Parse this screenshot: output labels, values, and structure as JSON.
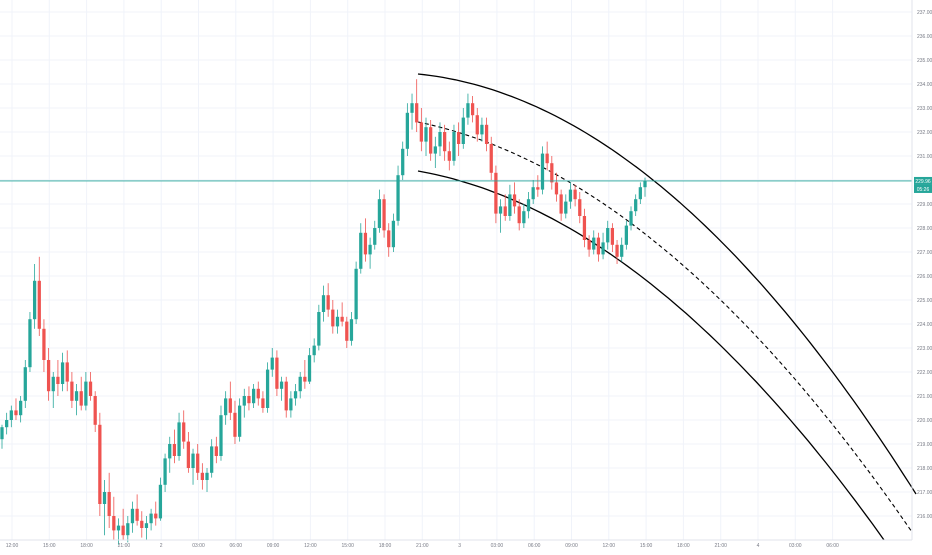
{
  "chart_data": {
    "type": "candlestick",
    "title": "",
    "xlabel": "",
    "ylabel": "",
    "ylim": [
      215,
      237.5
    ],
    "grid": true,
    "colors": {
      "up": "#26a69a",
      "down": "#ef5350",
      "last_price_line": "#26a69a",
      "channel": "#000000",
      "grid": "#f0f3fa",
      "axis_text": "#787b86"
    },
    "y_ticks": [
      "216.00",
      "217.00",
      "218.00",
      "219.00",
      "220.00",
      "221.00",
      "222.00",
      "223.00",
      "224.00",
      "225.00",
      "226.00",
      "227.00",
      "228.00",
      "229.00",
      "230.00",
      "231.00",
      "232.00",
      "233.00",
      "234.00",
      "235.00",
      "236.00",
      "237.00"
    ],
    "x_ticks": [
      "12:00",
      "15:00",
      "18:00",
      "21:00",
      "2",
      "03:00",
      "06:00",
      "09:00",
      "12:00",
      "15:00",
      "18:00",
      "21:00",
      "3",
      "03:00",
      "06:00",
      "09:00",
      "12:00",
      "15:00",
      "18:00",
      "21:00",
      "4",
      "03:00",
      "06:00"
    ],
    "last_price": 229.96,
    "last_price_badges": [
      "229.96",
      "05:26"
    ],
    "candles": [
      [
        219.2,
        219.8,
        218.8,
        219.7
      ],
      [
        219.7,
        220.3,
        219.4,
        220.0
      ],
      [
        220.0,
        220.6,
        219.7,
        220.4
      ],
      [
        220.4,
        220.9,
        220.0,
        220.2
      ],
      [
        220.2,
        221.0,
        219.9,
        220.8
      ],
      [
        220.8,
        222.5,
        220.5,
        222.2
      ],
      [
        222.2,
        224.5,
        222.0,
        224.2
      ],
      [
        224.2,
        226.5,
        223.8,
        225.8
      ],
      [
        225.8,
        226.8,
        223.5,
        223.8
      ],
      [
        223.8,
        224.2,
        222.0,
        222.5
      ],
      [
        222.5,
        223.0,
        220.8,
        221.2
      ],
      [
        221.2,
        222.0,
        220.5,
        221.8
      ],
      [
        221.8,
        222.5,
        221.0,
        221.5
      ],
      [
        221.5,
        222.8,
        221.2,
        222.4
      ],
      [
        222.4,
        222.9,
        221.2,
        221.6
      ],
      [
        221.6,
        222.0,
        220.5,
        220.8
      ],
      [
        220.8,
        221.5,
        220.2,
        221.2
      ],
      [
        221.2,
        221.8,
        220.4,
        220.6
      ],
      [
        220.6,
        222.0,
        220.4,
        221.6
      ],
      [
        221.6,
        222.0,
        220.8,
        221.0
      ],
      [
        221.0,
        221.2,
        219.5,
        219.8
      ],
      [
        219.8,
        220.3,
        216.0,
        216.5
      ],
      [
        216.5,
        217.5,
        215.2,
        217.0
      ],
      [
        217.0,
        217.8,
        215.5,
        216.0
      ],
      [
        216.0,
        216.8,
        215.0,
        215.4
      ],
      [
        215.4,
        215.9,
        214.8,
        215.6
      ],
      [
        215.6,
        216.3,
        215.0,
        215.2
      ],
      [
        215.2,
        216.0,
        214.9,
        215.7
      ],
      [
        215.7,
        216.6,
        215.3,
        216.3
      ],
      [
        216.3,
        216.9,
        215.6,
        215.8
      ],
      [
        215.8,
        216.2,
        215.1,
        215.5
      ],
      [
        215.5,
        216.0,
        215.0,
        215.7
      ],
      [
        215.7,
        216.3,
        215.4,
        216.1
      ],
      [
        216.1,
        216.6,
        215.6,
        215.9
      ],
      [
        215.9,
        217.6,
        215.8,
        217.3
      ],
      [
        217.3,
        218.6,
        217.0,
        218.4
      ],
      [
        218.4,
        219.3,
        217.8,
        219.0
      ],
      [
        219.0,
        219.6,
        218.2,
        218.5
      ],
      [
        218.5,
        220.3,
        218.3,
        219.9
      ],
      [
        219.9,
        220.4,
        218.8,
        219.1
      ],
      [
        219.1,
        219.5,
        217.8,
        218.0
      ],
      [
        218.0,
        218.8,
        217.3,
        218.6
      ],
      [
        218.6,
        219.0,
        217.5,
        217.8
      ],
      [
        217.8,
        218.2,
        217.1,
        217.5
      ],
      [
        217.5,
        218.0,
        217.0,
        217.8
      ],
      [
        217.8,
        219.2,
        217.6,
        218.9
      ],
      [
        218.9,
        219.3,
        218.2,
        218.5
      ],
      [
        218.5,
        220.6,
        218.3,
        220.2
      ],
      [
        220.2,
        221.2,
        219.8,
        220.9
      ],
      [
        220.9,
        221.6,
        220.0,
        220.3
      ],
      [
        220.3,
        220.8,
        219.0,
        219.3
      ],
      [
        219.3,
        220.9,
        219.1,
        220.6
      ],
      [
        220.6,
        221.3,
        220.1,
        221.0
      ],
      [
        221.0,
        221.4,
        220.4,
        220.7
      ],
      [
        220.7,
        221.5,
        220.5,
        221.3
      ],
      [
        221.3,
        221.6,
        220.6,
        220.9
      ],
      [
        220.9,
        221.2,
        220.3,
        220.5
      ],
      [
        220.5,
        222.4,
        220.3,
        222.1
      ],
      [
        222.1,
        223.0,
        221.8,
        222.6
      ],
      [
        222.6,
        222.9,
        221.0,
        221.3
      ],
      [
        221.3,
        221.8,
        220.8,
        221.6
      ],
      [
        221.6,
        221.8,
        220.1,
        220.4
      ],
      [
        220.4,
        221.2,
        220.1,
        220.9
      ],
      [
        220.9,
        221.5,
        220.6,
        221.2
      ],
      [
        221.2,
        222.0,
        220.9,
        221.8
      ],
      [
        221.8,
        222.5,
        221.3,
        221.6
      ],
      [
        221.6,
        223.0,
        221.5,
        222.7
      ],
      [
        222.7,
        223.4,
        222.4,
        223.1
      ],
      [
        223.1,
        224.8,
        222.9,
        224.5
      ],
      [
        224.5,
        225.6,
        224.1,
        225.2
      ],
      [
        225.2,
        225.7,
        224.3,
        224.6
      ],
      [
        224.6,
        225.0,
        223.6,
        223.9
      ],
      [
        223.9,
        224.6,
        223.6,
        224.3
      ],
      [
        224.3,
        224.9,
        223.9,
        224.1
      ],
      [
        224.1,
        224.3,
        223.0,
        223.3
      ],
      [
        223.3,
        224.5,
        223.1,
        224.2
      ],
      [
        224.2,
        226.6,
        224.0,
        226.3
      ],
      [
        226.3,
        228.2,
        226.1,
        227.8
      ],
      [
        227.8,
        228.4,
        226.6,
        226.9
      ],
      [
        226.9,
        227.6,
        226.3,
        227.3
      ],
      [
        227.3,
        228.3,
        227.1,
        228.0
      ],
      [
        228.0,
        229.6,
        227.8,
        229.2
      ],
      [
        229.2,
        229.4,
        227.6,
        227.9
      ],
      [
        227.9,
        228.2,
        226.8,
        227.2
      ],
      [
        227.2,
        228.6,
        227.0,
        228.3
      ],
      [
        228.3,
        230.6,
        228.1,
        230.2
      ],
      [
        230.2,
        231.6,
        230.0,
        231.3
      ],
      [
        231.3,
        233.2,
        231.0,
        232.8
      ],
      [
        232.8,
        233.6,
        232.1,
        233.2
      ],
      [
        233.2,
        234.2,
        232.0,
        232.4
      ],
      [
        232.4,
        233.0,
        231.2,
        231.6
      ],
      [
        231.6,
        232.6,
        231.0,
        232.2
      ],
      [
        232.2,
        232.5,
        230.8,
        231.1
      ],
      [
        231.1,
        231.8,
        230.5,
        231.4
      ],
      [
        231.4,
        232.4,
        231.0,
        232.0
      ],
      [
        232.0,
        232.3,
        230.8,
        231.2
      ],
      [
        231.2,
        231.6,
        230.4,
        230.8
      ],
      [
        230.8,
        232.3,
        230.6,
        232.0
      ],
      [
        232.0,
        232.4,
        231.0,
        231.5
      ],
      [
        231.5,
        233.0,
        231.3,
        232.6
      ],
      [
        232.6,
        233.6,
        232.3,
        233.2
      ],
      [
        233.2,
        233.5,
        232.4,
        232.7
      ],
      [
        232.7,
        233.0,
        231.6,
        231.9
      ],
      [
        231.9,
        232.6,
        231.6,
        232.3
      ],
      [
        232.3,
        232.6,
        231.2,
        231.5
      ],
      [
        231.5,
        231.8,
        230.0,
        230.3
      ],
      [
        230.3,
        230.6,
        228.2,
        228.6
      ],
      [
        228.6,
        229.2,
        227.8,
        228.9
      ],
      [
        228.9,
        229.4,
        228.3,
        228.5
      ],
      [
        228.5,
        229.8,
        228.3,
        229.4
      ],
      [
        229.4,
        229.9,
        228.6,
        228.9
      ],
      [
        228.9,
        229.2,
        227.9,
        228.2
      ],
      [
        228.2,
        229.0,
        228.0,
        228.7
      ],
      [
        228.7,
        229.5,
        228.4,
        229.2
      ],
      [
        229.2,
        230.0,
        229.0,
        229.7
      ],
      [
        229.7,
        230.2,
        229.3,
        229.6
      ],
      [
        229.6,
        231.4,
        229.4,
        231.1
      ],
      [
        231.1,
        231.6,
        230.4,
        230.7
      ],
      [
        230.7,
        231.0,
        229.6,
        229.9
      ],
      [
        229.9,
        230.3,
        229.1,
        229.4
      ],
      [
        229.4,
        229.6,
        228.3,
        228.6
      ],
      [
        228.6,
        229.4,
        228.4,
        229.1
      ],
      [
        229.1,
        229.9,
        228.8,
        229.6
      ],
      [
        229.6,
        229.8,
        228.9,
        229.2
      ],
      [
        229.2,
        229.5,
        228.2,
        228.5
      ],
      [
        228.5,
        228.8,
        227.2,
        227.5
      ],
      [
        227.5,
        227.7,
        226.8,
        227.1
      ],
      [
        227.1,
        227.9,
        226.9,
        227.6
      ],
      [
        227.6,
        227.8,
        226.6,
        226.9
      ],
      [
        226.9,
        227.8,
        226.7,
        227.4
      ],
      [
        227.4,
        228.3,
        227.1,
        228.0
      ],
      [
        228.0,
        228.2,
        227.0,
        227.3
      ],
      [
        227.3,
        227.5,
        226.5,
        226.8
      ],
      [
        226.8,
        227.6,
        226.6,
        227.3
      ],
      [
        227.3,
        228.3,
        227.1,
        228.1
      ],
      [
        228.1,
        228.9,
        227.9,
        228.7
      ],
      [
        228.7,
        229.4,
        228.5,
        229.2
      ],
      [
        229.2,
        229.9,
        229.0,
        229.7
      ],
      [
        229.7,
        230.1,
        229.3,
        229.96
      ]
    ]
  }
}
